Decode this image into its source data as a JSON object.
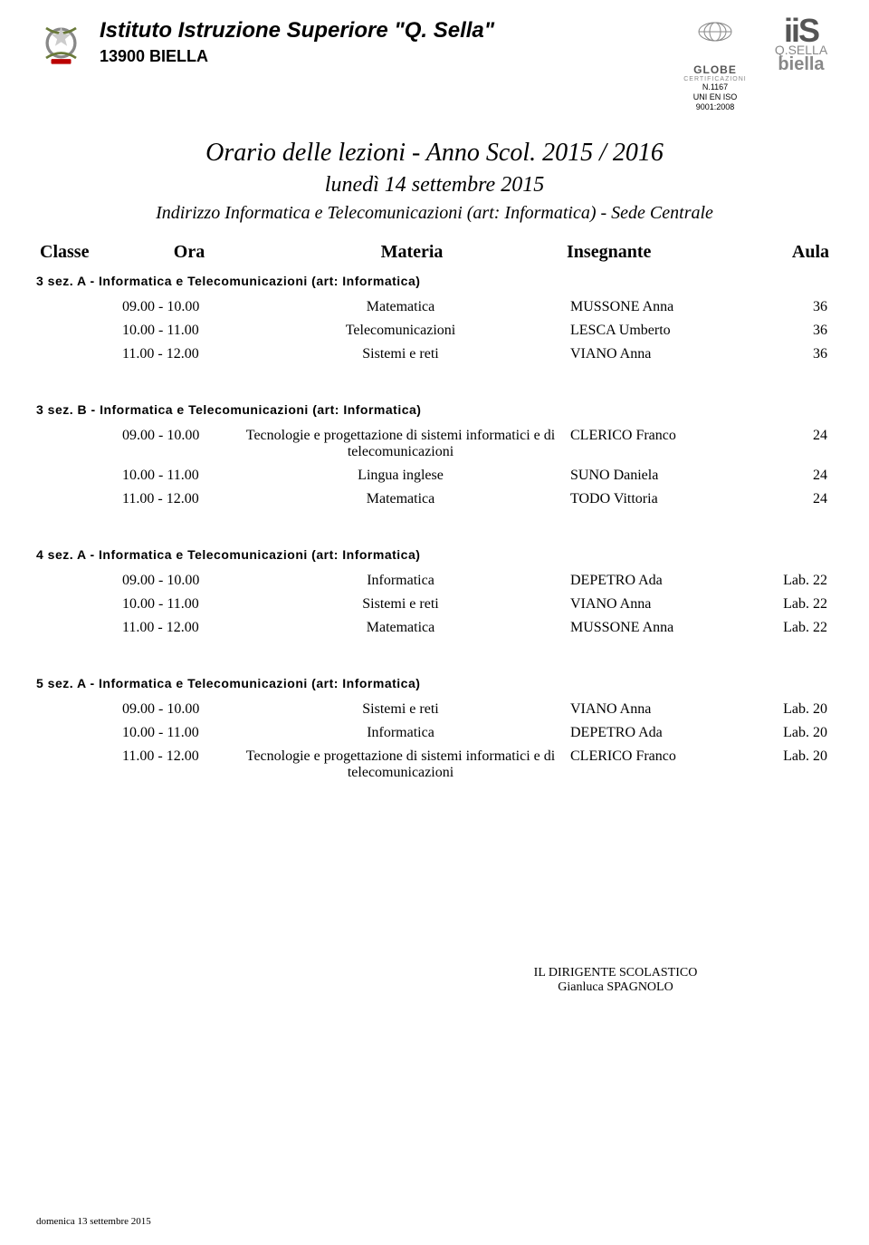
{
  "header": {
    "school_name": "Istituto Istruzione Superiore \"Q. Sella\"",
    "school_city": "13900 BIELLA",
    "globe_cert": {
      "line1": "N.1167",
      "line2": "UNI EN ISO 9001:2008",
      "label_top": "GLOBE",
      "label_sub": "CERTIFICAZIONI"
    },
    "iis": {
      "top": "iiS",
      "mid": "Q.SELLA",
      "bot": "biella"
    }
  },
  "title": {
    "main": "Orario delle lezioni  -  Anno Scol. 2015 / 2016",
    "sub": "lunedì 14 settembre 2015",
    "track": "Indirizzo Informatica e Telecomunicazioni (art: Informatica)  -  Sede Centrale"
  },
  "columns": {
    "classe": "Classe",
    "ora": "Ora",
    "materia": "Materia",
    "insegnante": "Insegnante",
    "aula": "Aula"
  },
  "sections": [
    {
      "title": "3 sez. A  -  Informatica e Telecomunicazioni (art: Informatica)",
      "rows": [
        {
          "ora": "09.00 - 10.00",
          "materia": "Matematica",
          "insegnante": "MUSSONE Anna",
          "aula": "36"
        },
        {
          "ora": "10.00 - 11.00",
          "materia": "Telecomunicazioni",
          "insegnante": "LESCA Umberto",
          "aula": "36"
        },
        {
          "ora": "11.00 - 12.00",
          "materia": "Sistemi e reti",
          "insegnante": "VIANO Anna",
          "aula": "36"
        }
      ]
    },
    {
      "title": "3 sez. B  -  Informatica e Telecomunicazioni (art: Informatica)",
      "rows": [
        {
          "ora": "09.00 - 10.00",
          "materia": "Tecnologie e progettazione di sistemi informatici e di telecomunicazioni",
          "insegnante": "CLERICO Franco",
          "aula": "24"
        },
        {
          "ora": "10.00 - 11.00",
          "materia": "Lingua inglese",
          "insegnante": "SUNO Daniela",
          "aula": "24"
        },
        {
          "ora": "11.00 - 12.00",
          "materia": "Matematica",
          "insegnante": "TODO Vittoria",
          "aula": "24"
        }
      ]
    },
    {
      "title": "4 sez. A  -  Informatica e Telecomunicazioni (art: Informatica)",
      "rows": [
        {
          "ora": "09.00 - 10.00",
          "materia": "Informatica",
          "insegnante": "DEPETRO Ada",
          "aula": "Lab. 22"
        },
        {
          "ora": "10.00 - 11.00",
          "materia": "Sistemi e reti",
          "insegnante": "VIANO Anna",
          "aula": "Lab. 22"
        },
        {
          "ora": "11.00 - 12.00",
          "materia": "Matematica",
          "insegnante": "MUSSONE Anna",
          "aula": "Lab. 22"
        }
      ]
    },
    {
      "title": "5 sez. A  -  Informatica e Telecomunicazioni (art: Informatica)",
      "rows": [
        {
          "ora": "09.00 - 10.00",
          "materia": "Sistemi e reti",
          "insegnante": "VIANO Anna",
          "aula": "Lab. 20"
        },
        {
          "ora": "10.00 - 11.00",
          "materia": "Informatica",
          "insegnante": "DEPETRO Ada",
          "aula": "Lab. 20"
        },
        {
          "ora": "11.00 - 12.00",
          "materia": "Tecnologie e progettazione di sistemi informatici e di telecomunicazioni",
          "insegnante": "CLERICO Franco",
          "aula": "Lab. 20"
        }
      ]
    }
  ],
  "footer": {
    "role": "IL DIRIGENTE SCOLASTICO",
    "name": "Gianluca SPAGNOLO",
    "date": "domenica 13 settembre 2015"
  },
  "style": {
    "text_color": "#000000",
    "bg_color": "#ffffff",
    "section_title_fontsize": 14,
    "row_fontsize": 16
  }
}
